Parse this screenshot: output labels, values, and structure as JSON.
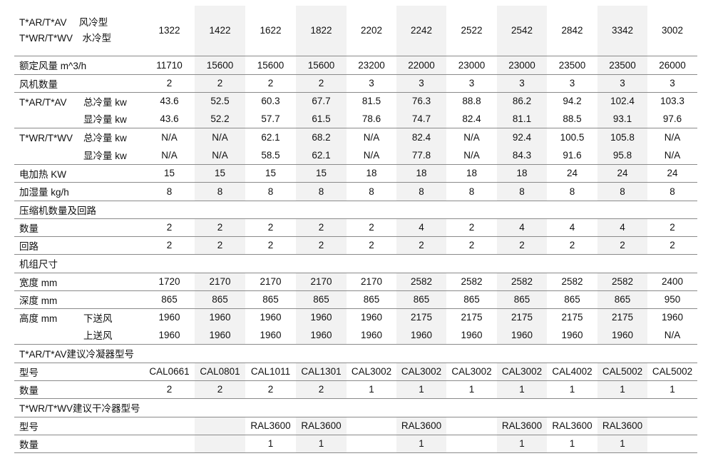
{
  "header": {
    "row1": "T*AR/T*AV　 风冷型",
    "row2": "T*WR/T*WV　水冷型",
    "models": [
      "1322",
      "1422",
      "1622",
      "1822",
      "2202",
      "2242",
      "2522",
      "2542",
      "2842",
      "3342",
      "3002"
    ]
  },
  "rows": {
    "airflow": {
      "label": "额定风量 m^3/h",
      "values": [
        "11710",
        "15600",
        "15600",
        "15600",
        "23200",
        "22000",
        "23000",
        "23000",
        "23500",
        "23500",
        "26000"
      ]
    },
    "fans": {
      "label": "风机数量",
      "values": [
        "2",
        "2",
        "2",
        "2",
        "3",
        "3",
        "3",
        "3",
        "3",
        "3",
        "3"
      ]
    },
    "ar_total": {
      "group": "T*AR/T*AV",
      "label": "总冷量 kw",
      "values": [
        "43.6",
        "52.5",
        "60.3",
        "67.7",
        "81.5",
        "76.3",
        "88.8",
        "86.2",
        "94.2",
        "102.4",
        "103.3"
      ]
    },
    "ar_sensible": {
      "label": "显冷量 kw",
      "values": [
        "43.6",
        "52.2",
        "57.7",
        "61.5",
        "78.6",
        "74.7",
        "82.4",
        "81.1",
        "88.5",
        "93.1",
        "97.6"
      ]
    },
    "wr_total": {
      "group": "T*WR/T*WV",
      "label": "总冷量 kw",
      "values": [
        "N/A",
        "N/A",
        "62.1",
        "68.2",
        "N/A",
        "82.4",
        "N/A",
        "92.4",
        "100.5",
        "105.8",
        "N/A"
      ]
    },
    "wr_sensible": {
      "label": "显冷量 kw",
      "values": [
        "N/A",
        "N/A",
        "58.5",
        "62.1",
        "N/A",
        "77.8",
        "N/A",
        "84.3",
        "91.6",
        "95.8",
        "N/A"
      ]
    },
    "heater": {
      "label": "电加热 KW",
      "values": [
        "15",
        "15",
        "15",
        "15",
        "18",
        "18",
        "18",
        "18",
        "24",
        "24",
        "24"
      ]
    },
    "humid": {
      "label": "加湿量 kg/h",
      "values": [
        "8",
        "8",
        "8",
        "8",
        "8",
        "8",
        "8",
        "8",
        "8",
        "8",
        "8"
      ]
    },
    "comp_section": {
      "label": "压缩机数量及回路"
    },
    "comp_qty": {
      "label": "数量",
      "values": [
        "2",
        "2",
        "2",
        "2",
        "2",
        "4",
        "2",
        "4",
        "4",
        "4",
        "2"
      ]
    },
    "comp_circuit": {
      "label": "回路",
      "values": [
        "2",
        "2",
        "2",
        "2",
        "2",
        "2",
        "2",
        "2",
        "2",
        "2",
        "2"
      ]
    },
    "dim_section": {
      "label": "机组尺寸"
    },
    "width": {
      "label": "宽度 mm",
      "values": [
        "1720",
        "2170",
        "2170",
        "2170",
        "2170",
        "2582",
        "2582",
        "2582",
        "2582",
        "2582",
        "2400"
      ]
    },
    "depth": {
      "label": "深度 mm",
      "values": [
        "865",
        "865",
        "865",
        "865",
        "865",
        "865",
        "865",
        "865",
        "865",
        "865",
        "950"
      ]
    },
    "height_down": {
      "group": "高度 mm",
      "label": "下送风",
      "values": [
        "1960",
        "1960",
        "1960",
        "1960",
        "1960",
        "2175",
        "2175",
        "2175",
        "2175",
        "2175",
        "1960"
      ]
    },
    "height_up": {
      "label": "上送风",
      "values": [
        "1960",
        "1960",
        "1960",
        "1960",
        "1960",
        "1960",
        "1960",
        "1960",
        "1960",
        "1960",
        "N/A"
      ]
    },
    "cond_section": {
      "label": "T*AR/T*AV建议冷凝器型号"
    },
    "cond_model": {
      "label": "型号",
      "values": [
        "CAL0661",
        "CAL0801",
        "CAL1011",
        "CAL1301",
        "CAL3002",
        "CAL3002",
        "CAL3002",
        "CAL3002",
        "CAL4002",
        "CAL5002",
        "CAL5002"
      ]
    },
    "cond_qty": {
      "label": "数量",
      "values": [
        "2",
        "2",
        "2",
        "2",
        "1",
        "1",
        "1",
        "1",
        "1",
        "1",
        "1"
      ]
    },
    "dry_section": {
      "label": "T*WR/T*WV建议干冷器型号"
    },
    "dry_model": {
      "label": "型号",
      "values": [
        "",
        "",
        "RAL3600",
        "RAL3600",
        "",
        "RAL3600",
        "",
        "RAL3600",
        "RAL3600",
        "RAL3600",
        ""
      ]
    },
    "dry_qty": {
      "label": "数量",
      "values": [
        "",
        "",
        "1",
        "1",
        "",
        "1",
        "",
        "1",
        "1",
        "1",
        ""
      ]
    }
  }
}
